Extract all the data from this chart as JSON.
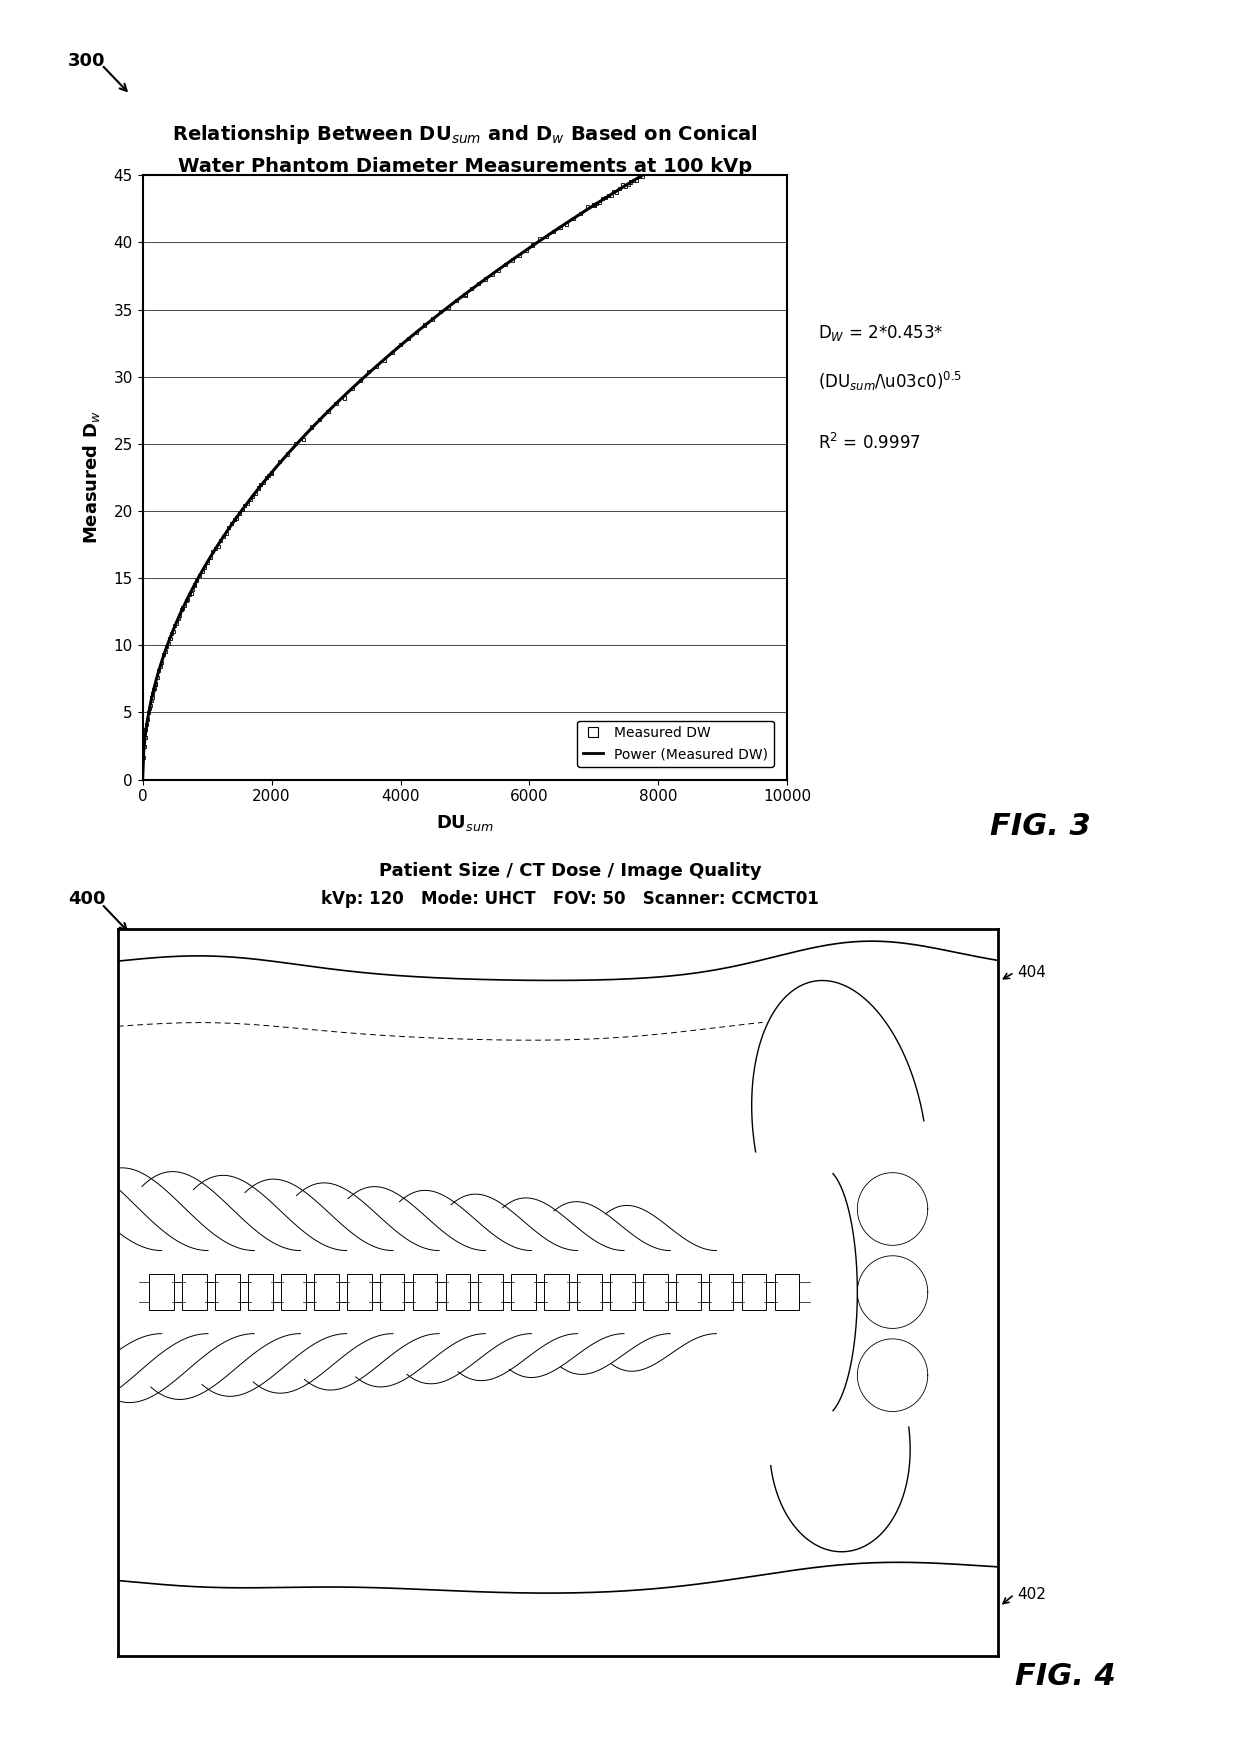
{
  "fig3_title_line1": "Relationship Between DU$_{sum}$ and D$_w$ Based on Conical",
  "fig3_title_line2": "Water Phantom Diameter Measurements at 100 kVp",
  "fig3_xlabel": "DU$_{sum}$",
  "fig3_ylabel": "Measured D$_w$",
  "fig3_xlim": [
    0,
    10000
  ],
  "fig3_ylim": [
    0,
    45
  ],
  "fig3_xticks": [
    0,
    2000,
    4000,
    6000,
    8000,
    10000
  ],
  "fig3_yticks": [
    0,
    5,
    10,
    15,
    20,
    25,
    30,
    35,
    40,
    45
  ],
  "fig3_legend_measured": "Measured DW",
  "fig3_legend_power": "Power (Measured DW)",
  "label_300": "300",
  "label_400": "400",
  "fig4_title_line1": "Patient Size / CT Dose / Image Quality",
  "fig4_title_line2": "kVp: 120   Mode: UHCT   FOV: 50   Scanner: CCMCT01",
  "label_402": "402",
  "label_404": "404",
  "fig3_label": "FIG. 3",
  "fig4_label": "FIG. 4",
  "bg_color": "#ffffff"
}
